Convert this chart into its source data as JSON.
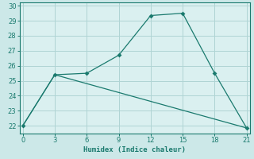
{
  "line1_x": [
    0,
    3,
    6,
    9,
    12,
    15,
    18,
    21
  ],
  "line1_y": [
    22.0,
    25.4,
    25.5,
    26.7,
    29.35,
    29.5,
    25.5,
    21.85
  ],
  "line2_x": [
    0,
    3,
    21
  ],
  "line2_y": [
    22.0,
    25.4,
    21.85
  ],
  "line_color": "#1a7a6e",
  "marker": "D",
  "marker_size": 3,
  "xlim": [
    -0.3,
    21.3
  ],
  "ylim": [
    21.5,
    30.2
  ],
  "xticks": [
    0,
    3,
    6,
    9,
    12,
    15,
    18,
    21
  ],
  "yticks": [
    22,
    23,
    24,
    25,
    26,
    27,
    28,
    29,
    30
  ],
  "xlabel": "Humidex (Indice chaleur)",
  "bg_color": "#cce8e8",
  "grid_color": "#afd4d4",
  "plot_bg": "#daf0f0"
}
